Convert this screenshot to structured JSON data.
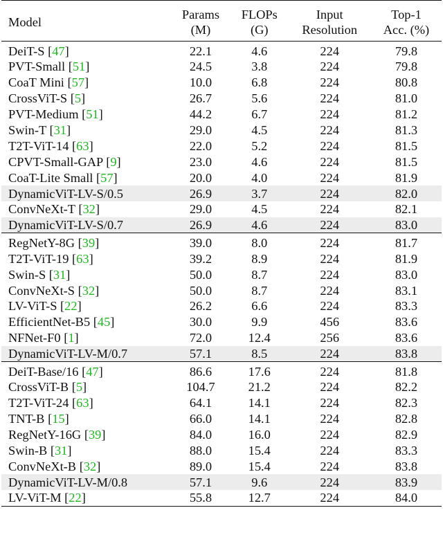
{
  "table": {
    "headers": {
      "model": "Model",
      "params_line1": "Params",
      "params_line2": "(M)",
      "flops_line1": "FLOPs",
      "flops_line2": "(G)",
      "res_line1": "Input",
      "res_line2": "Resolution",
      "acc_line1": "Top-1",
      "acc_line2": "Acc. (%)"
    },
    "groups": [
      {
        "rows": [
          {
            "model": "DeiT-S ",
            "ref": "[47]",
            "bl": "[",
            "bn": "47",
            "br": "]",
            "params": "22.1",
            "flops": "4.6",
            "res": "224",
            "acc": "79.8"
          },
          {
            "model": "PVT-Small ",
            "ref": "[51]",
            "bl": "[",
            "bn": "51",
            "br": "]",
            "params": "24.5",
            "flops": "3.8",
            "res": "224",
            "acc": "79.8"
          },
          {
            "model": "CoaT Mini ",
            "ref": "[57]",
            "bl": "[",
            "bn": "57",
            "br": "]",
            "params": "10.0",
            "flops": "6.8",
            "res": "224",
            "acc": "80.8"
          },
          {
            "model": "CrossViT-S ",
            "ref": "[5]",
            "bl": "[",
            "bn": "5",
            "br": "]",
            "params": "26.7",
            "flops": "5.6",
            "res": "224",
            "acc": "81.0"
          },
          {
            "model": "PVT-Medium ",
            "ref": "[51]",
            "bl": "[",
            "bn": "51",
            "br": "]",
            "params": "44.2",
            "flops": "6.7",
            "res": "224",
            "acc": "81.2"
          },
          {
            "model": "Swin-T ",
            "ref": "[31]",
            "bl": "[",
            "bn": "31",
            "br": "]",
            "params": "29.0",
            "flops": "4.5",
            "res": "224",
            "acc": "81.3"
          },
          {
            "model": "T2T-ViT-14 ",
            "ref": "[63]",
            "bl": "[",
            "bn": "63",
            "br": "]",
            "params": "22.0",
            "flops": "5.2",
            "res": "224",
            "acc": "81.5"
          },
          {
            "model": "CPVT-Small-GAP ",
            "ref": "[9]",
            "bl": "[",
            "bn": "9",
            "br": "]",
            "params": "23.0",
            "flops": "4.6",
            "res": "224",
            "acc": "81.5"
          },
          {
            "model": "CoaT-Lite Small ",
            "ref": "[57]",
            "bl": "[",
            "bn": "57",
            "br": "]",
            "params": "20.0",
            "flops": "4.0",
            "res": "224",
            "acc": "81.9"
          },
          {
            "model": "DynamicViT-LV-S/0.5",
            "hl": true,
            "params": "26.9",
            "flops": "3.7",
            "res": "224",
            "acc": "82.0"
          },
          {
            "model": "ConvNeXt-T ",
            "ref": "[32]",
            "bl": "[",
            "bn": "32",
            "br": "]",
            "params": "29.0",
            "flops": "4.5",
            "res": "224",
            "acc": "82.1"
          },
          {
            "model": "DynamicViT-LV-S/0.7",
            "hl": true,
            "params": "26.9",
            "flops": "4.6",
            "res": "224",
            "acc": "83.0"
          }
        ]
      },
      {
        "rows": [
          {
            "model": "RegNetY-8G ",
            "bl": "[",
            "bn": "39",
            "br": "]",
            "params": "39.0",
            "flops": "8.0",
            "res": "224",
            "acc": "81.7"
          },
          {
            "model": "T2T-ViT-19 ",
            "bl": "[",
            "bn": "63",
            "br": "]",
            "params": "39.2",
            "flops": "8.9",
            "res": "224",
            "acc": "81.9"
          },
          {
            "model": "Swin-S ",
            "bl": "[",
            "bn": "31",
            "br": "]",
            "params": "50.0",
            "flops": "8.7",
            "res": "224",
            "acc": "83.0"
          },
          {
            "model": "ConvNeXt-S ",
            "bl": "[",
            "bn": "32",
            "br": "]",
            "params": "50.0",
            "flops": "8.7",
            "res": "224",
            "acc": "83.1"
          },
          {
            "model": "LV-ViT-S ",
            "bl": "[",
            "bn": "22",
            "br": "]",
            "params": "26.2",
            "flops": "6.6",
            "res": "224",
            "acc": "83.3"
          },
          {
            "model": "EfficientNet-B5 ",
            "bl": "[",
            "bn": "45",
            "br": "]",
            "params": "30.0",
            "flops": "9.9",
            "res": "456",
            "acc": "83.6"
          },
          {
            "model": "NFNet-F0 ",
            "bl": "[",
            "bn": "1",
            "br": "]",
            "params": "72.0",
            "flops": "12.4",
            "res": "256",
            "acc": "83.6"
          },
          {
            "model": "DynamicViT-LV-M/0.7",
            "hl": true,
            "params": "57.1",
            "flops": "8.5",
            "res": "224",
            "acc": "83.8"
          }
        ]
      },
      {
        "rows": [
          {
            "model": "DeiT-Base/16 ",
            "bl": "[",
            "bn": "47",
            "br": "]",
            "params": "86.6",
            "flops": "17.6",
            "res": "224",
            "acc": "81.8"
          },
          {
            "model": "CrossViT-B ",
            "bl": "[",
            "bn": "5",
            "br": "]",
            "params": "104.7",
            "flops": "21.2",
            "res": "224",
            "acc": "82.2"
          },
          {
            "model": "T2T-ViT-24 ",
            "bl": "[",
            "bn": "63",
            "br": "]",
            "params": "64.1",
            "flops": "14.1",
            "res": "224",
            "acc": "82.3"
          },
          {
            "model": "TNT-B ",
            "bl": "[",
            "bn": "15",
            "br": "]",
            "params": "66.0",
            "flops": "14.1",
            "res": "224",
            "acc": "82.8"
          },
          {
            "model": "RegNetY-16G ",
            "bl": "[",
            "bn": "39",
            "br": "]",
            "params": "84.0",
            "flops": "16.0",
            "res": "224",
            "acc": "82.9"
          },
          {
            "model": "Swin-B ",
            "bl": "[",
            "bn": "31",
            "br": "]",
            "params": "88.0",
            "flops": "15.4",
            "res": "224",
            "acc": "83.3"
          },
          {
            "model": "ConvNeXt-B ",
            "bl": "[",
            "bn": "32",
            "br": "]",
            "params": "89.0",
            "flops": "15.4",
            "res": "224",
            "acc": "83.8"
          },
          {
            "model": "DynamicViT-LV-M/0.8",
            "hl": true,
            "params": "57.1",
            "flops": "9.6",
            "res": "224",
            "acc": "83.9"
          },
          {
            "model": "LV-ViT-M ",
            "bl": "[",
            "bn": "22",
            "br": "]",
            "params": "55.8",
            "flops": "12.7",
            "res": "224",
            "acc": "84.0"
          }
        ]
      }
    ]
  }
}
